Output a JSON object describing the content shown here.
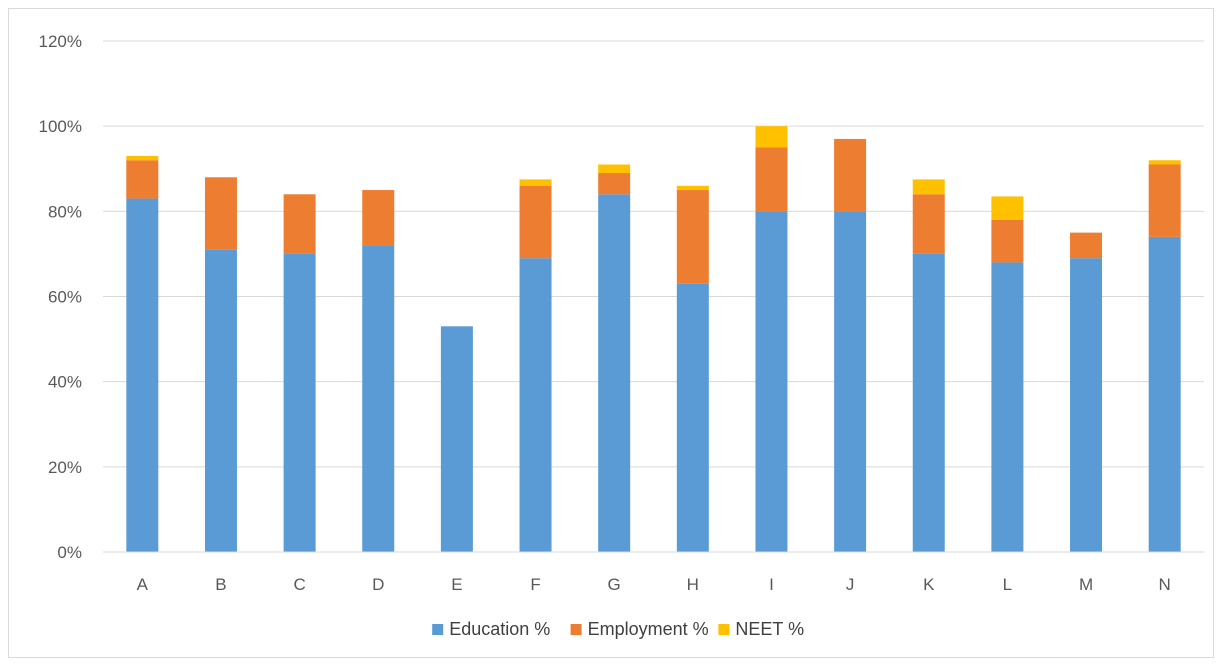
{
  "chart_data": {
    "type": "bar",
    "stacked": true,
    "title": "",
    "xlabel": "",
    "ylabel": "",
    "categories": [
      "A",
      "B",
      "C",
      "D",
      "E",
      "F",
      "G",
      "H",
      "I",
      "J",
      "K",
      "L",
      "M",
      "N"
    ],
    "series": [
      {
        "name": "Education %",
        "color": "#5b9bd5",
        "values": [
          83,
          71,
          70,
          72,
          53,
          69,
          84,
          63,
          80,
          80,
          70,
          68,
          69,
          74
        ]
      },
      {
        "name": "Employment %",
        "color": "#ed7d31",
        "values": [
          9,
          17,
          14,
          13,
          0,
          17,
          5,
          22,
          15,
          17,
          14,
          10,
          6,
          17
        ]
      },
      {
        "name": "NEET %",
        "color": "#ffc000",
        "values": [
          1,
          0,
          0,
          0,
          0,
          1.5,
          2,
          1,
          5,
          0,
          3.5,
          5.5,
          0,
          1
        ]
      }
    ],
    "ylim": [
      0,
      120
    ],
    "y_ticks": [
      0,
      20,
      40,
      60,
      80,
      100,
      120
    ],
    "y_tick_labels": [
      "0%",
      "20%",
      "40%",
      "60%",
      "80%",
      "100%",
      "120%"
    ],
    "grid": true,
    "gridline_color": "#d9d9d9",
    "legend_position": "bottom"
  }
}
